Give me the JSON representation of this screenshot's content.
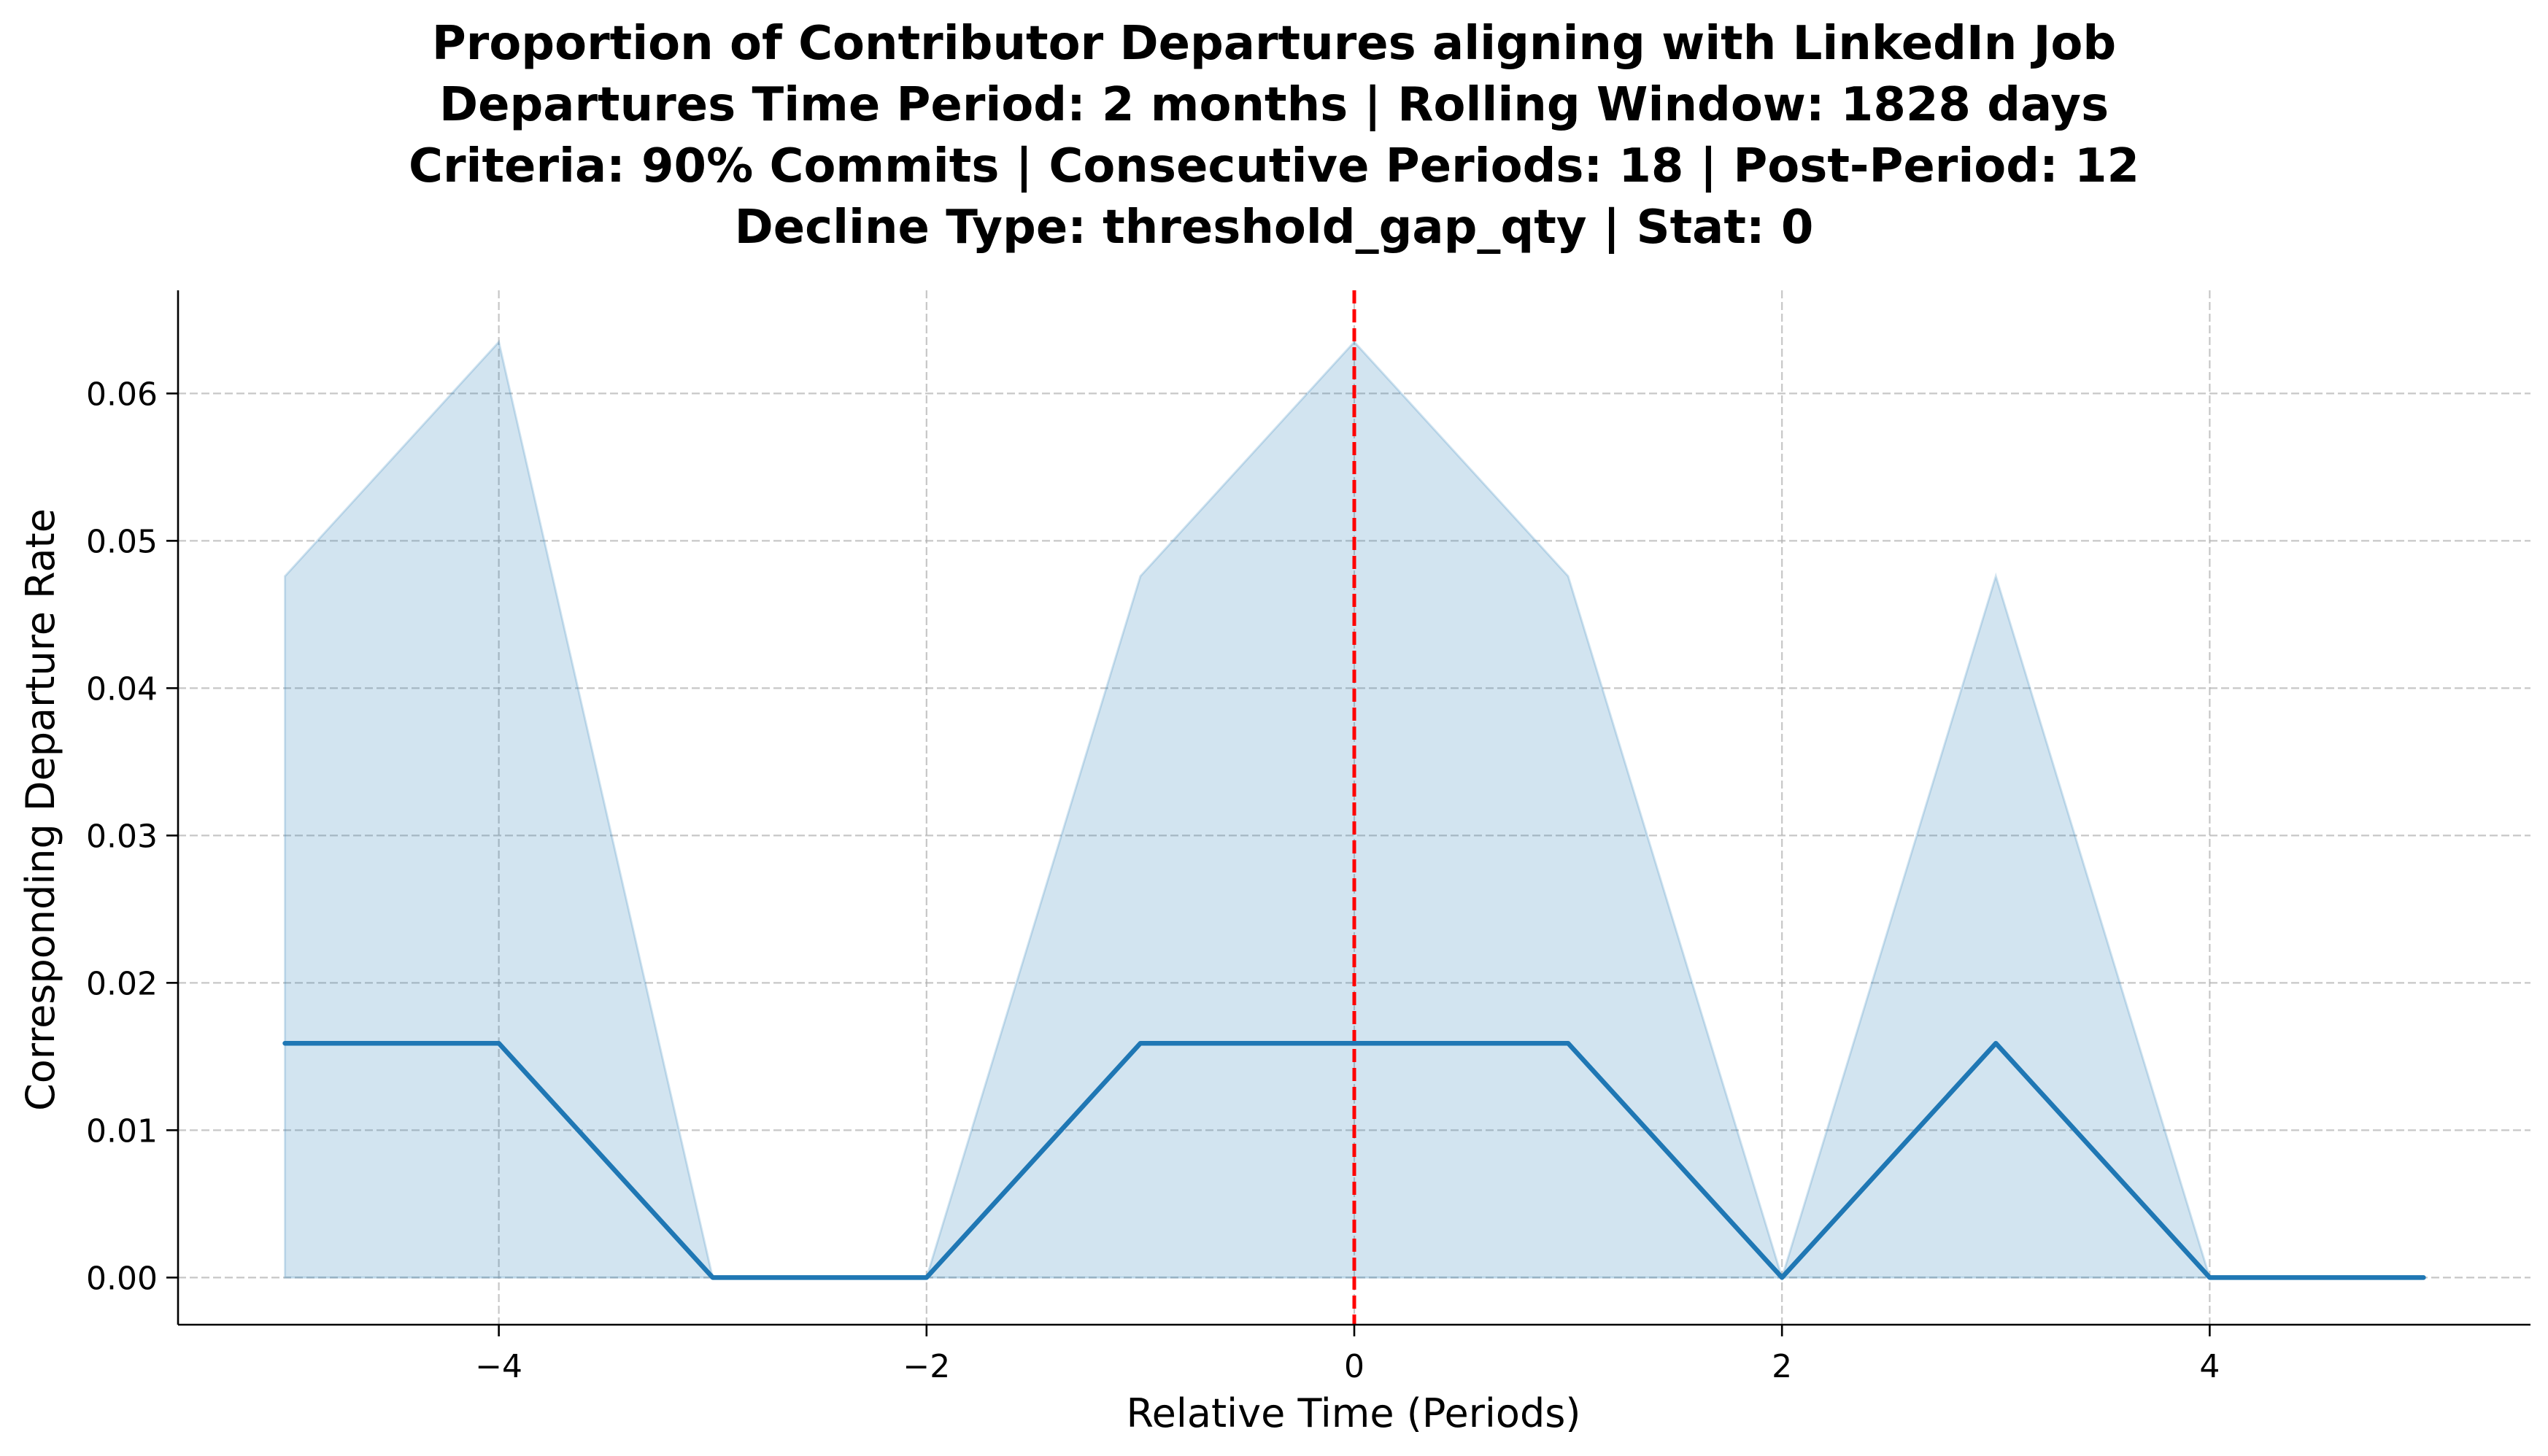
{
  "chart_data": {
    "type": "line",
    "title_lines": [
      "Proportion of Contributor Departures aligning with LinkedIn Job",
      "Departures Time Period: 2 months | Rolling Window: 1828 days",
      "Criteria: 90% Commits | Consecutive Periods: 18 | Post-Period: 12",
      "Decline Type: threshold_gap_qty | Stat: 0"
    ],
    "xlabel": "Relative Time (Periods)",
    "ylabel": "Corresponding Departure Rate",
    "xlim": [
      -5.5,
      5.5
    ],
    "ylim": [
      -0.0032,
      0.067
    ],
    "xticks": [
      -4,
      -2,
      0,
      2,
      4
    ],
    "xtick_labels": [
      "−4",
      "−2",
      "0",
      "2",
      "4"
    ],
    "yticks": [
      0.0,
      0.01,
      0.02,
      0.03,
      0.04,
      0.05,
      0.06
    ],
    "ytick_labels": [
      "0.00",
      "0.01",
      "0.02",
      "0.03",
      "0.04",
      "0.05",
      "0.06"
    ],
    "grid": true,
    "x": [
      -5,
      -4,
      -3,
      -2,
      -1,
      0,
      1,
      2,
      3,
      4,
      5
    ],
    "series": [
      {
        "values": [
          0.0159,
          0.0159,
          0.0,
          0.0,
          0.0159,
          0.0159,
          0.0159,
          0.0,
          0.0159,
          0.0,
          0.0
        ]
      }
    ],
    "band": {
      "lower": [
        0,
        0,
        0,
        0,
        0,
        0,
        0,
        0,
        0,
        0,
        0
      ],
      "upper": [
        0.0476,
        0.0635,
        0.0,
        0.0,
        0.0476,
        0.0635,
        0.0476,
        0.0,
        0.0476,
        0.0,
        0.0
      ]
    },
    "vline": {
      "x": 0
    },
    "colors": {
      "line": "#1f77b4",
      "band": "#1f77b4",
      "vline": "#ff0000",
      "grid": "#b0b0b0"
    }
  }
}
